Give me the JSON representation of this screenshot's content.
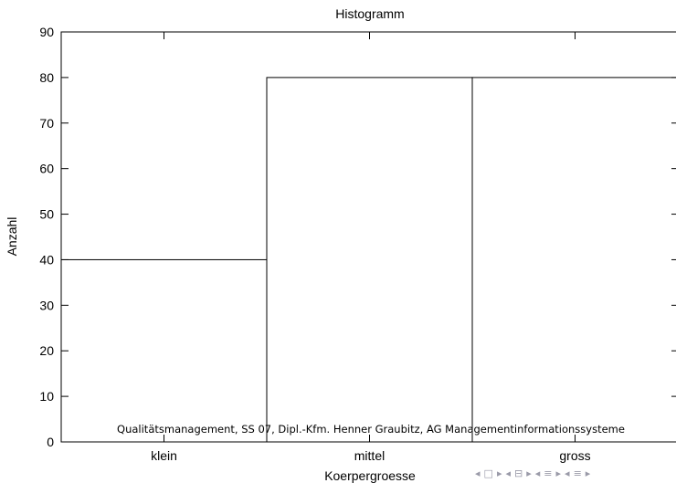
{
  "chart_data": {
    "type": "bar",
    "title": "Histogramm",
    "xlabel": "Koerpergroesse",
    "ylabel": "Anzahl",
    "categories": [
      "klein",
      "mittel",
      "gross"
    ],
    "values": [
      40,
      80,
      80
    ],
    "ylim": [
      0,
      90
    ],
    "yticks": [
      0,
      10,
      20,
      30,
      40,
      50,
      60,
      70,
      80,
      90
    ],
    "grid": false
  },
  "footer": {
    "text": "Qualitätsmanagement, SS 07, Dipl.-Kfm. Henner Graubitz, AG Managementinformationssysteme"
  },
  "nav": {
    "icons": [
      "arrow-left-icon",
      "frame-icon",
      "arrow-right-icon",
      "arrow-left-icon",
      "subsection-icon",
      "arrow-right-icon",
      "arrow-left-icon",
      "section-icon",
      "arrow-right-icon",
      "arrow-left-icon",
      "list-icon",
      "arrow-right-icon"
    ],
    "glyphs": [
      "◂",
      "□",
      "▸",
      "◂",
      "⊟",
      "▸",
      "◂",
      "≡",
      "▸",
      "◂",
      "≡",
      "▸"
    ]
  }
}
